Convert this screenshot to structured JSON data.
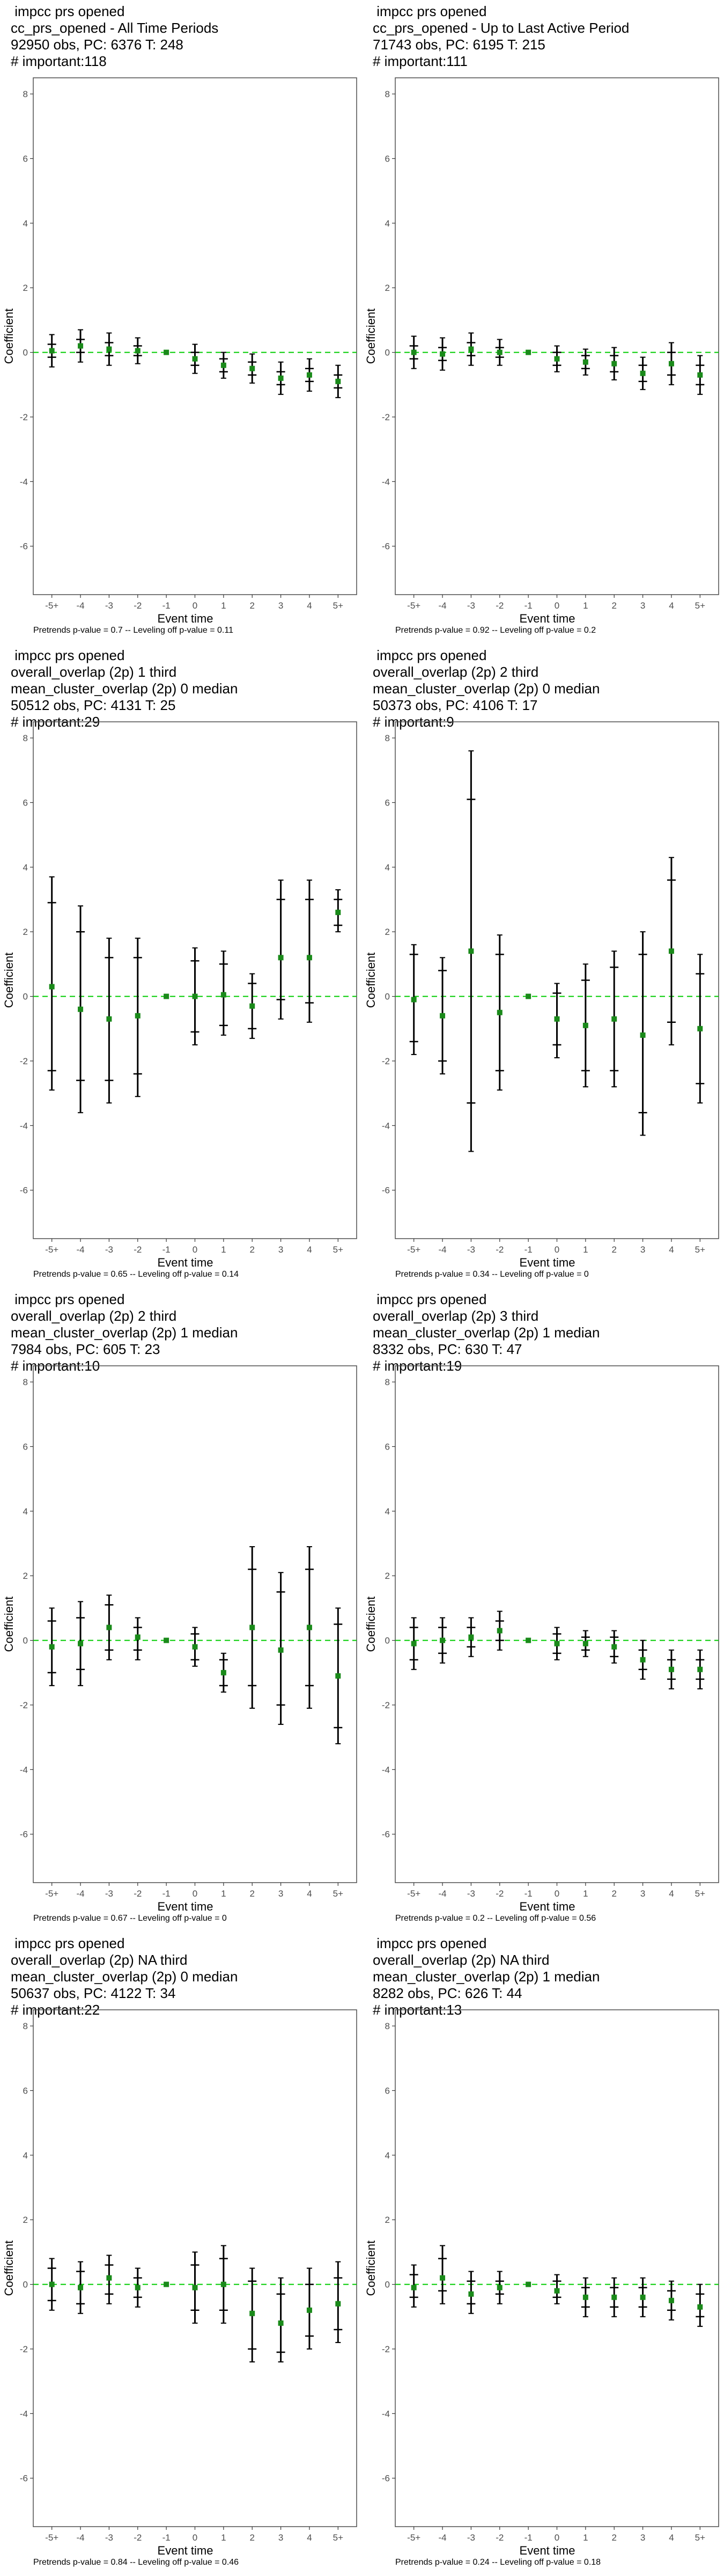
{
  "panels": [
    {
      "header": [
        " impcc prs opened",
        "cc_prs_opened - All Time Periods",
        "92950 obs, PC: 6376 T: 248",
        "# important:118"
      ],
      "footer": "Pretrends p-value = 0.7 -- Leveling off p-value = 0.11"
    },
    {
      "header": [
        " impcc prs opened",
        "cc_prs_opened - Up to Last Active Period",
        "71743 obs, PC: 6195 T: 215",
        "# important:111"
      ],
      "footer": "Pretrends p-value = 0.92 -- Leveling off p-value = 0.2"
    },
    {
      "header": [
        " impcc prs opened",
        "overall_overlap (2p) 1 third",
        "mean_cluster_overlap (2p) 0 median",
        "50512 obs, PC: 4131 T: 25",
        "# important:29"
      ],
      "footer": "Pretrends p-value = 0.65 -- Leveling off p-value = 0.14"
    },
    {
      "header": [
        " impcc prs opened",
        "overall_overlap (2p) 2 third",
        "mean_cluster_overlap (2p) 0 median",
        "50373 obs, PC: 4106 T: 17",
        "# important:9"
      ],
      "footer": "Pretrends p-value = 0.34 -- Leveling off p-value = 0"
    },
    {
      "header": [
        " impcc prs opened",
        "overall_overlap (2p) 2 third",
        "mean_cluster_overlap (2p) 1 median",
        "7984 obs, PC: 605 T: 23",
        "# important:10"
      ],
      "footer": "Pretrends p-value = 0.67 -- Leveling off p-value = 0"
    },
    {
      "header": [
        " impcc prs opened",
        "overall_overlap (2p) 3 third",
        "mean_cluster_overlap (2p) 1 median",
        "8332 obs, PC: 630 T: 47",
        "# important:19"
      ],
      "footer": "Pretrends p-value = 0.2 -- Leveling off p-value = 0.56"
    },
    {
      "header": [
        " impcc prs opened",
        "overall_overlap (2p) NA third",
        "mean_cluster_overlap (2p) 0 median",
        "50637 obs, PC: 4122 T: 34",
        "# important:22"
      ],
      "footer": "Pretrends p-value = 0.84 -- Leveling off p-value = 0.46"
    },
    {
      "header": [
        " impcc prs opened",
        "overall_overlap (2p) NA third",
        "mean_cluster_overlap (2p) 1 median",
        "8282 obs, PC: 626 T: 44",
        "# important:13"
      ],
      "footer": "Pretrends p-value = 0.24 -- Leveling off p-value = 0.18"
    }
  ],
  "colors": {
    "point": "#1a8a1a",
    "zero_line": "#00cc00",
    "bar": "#000000",
    "frame": "#4d4d4d"
  },
  "chart_data": [
    {
      "type": "scatter",
      "categories": [
        "-5+",
        "-4",
        "-3",
        "-2",
        "-1",
        "0",
        "1",
        "2",
        "3",
        "4",
        "5+"
      ],
      "values": [
        0.05,
        0.2,
        0.1,
        0.05,
        0,
        -0.2,
        -0.4,
        -0.5,
        -0.8,
        -0.7,
        -0.9
      ],
      "ci_outer": [
        [
          -0.45,
          0.55
        ],
        [
          -0.3,
          0.7
        ],
        [
          -0.4,
          0.6
        ],
        [
          -0.35,
          0.45
        ],
        [
          0,
          0
        ],
        [
          -0.65,
          0.25
        ],
        [
          -0.8,
          0
        ],
        [
          -0.95,
          -0.05
        ],
        [
          -1.3,
          -0.3
        ],
        [
          -1.2,
          -0.2
        ],
        [
          -1.4,
          -0.4
        ]
      ],
      "ci_inner": [
        [
          -0.15,
          0.25
        ],
        [
          0,
          0.4
        ],
        [
          -0.1,
          0.3
        ],
        [
          -0.1,
          0.2
        ],
        [
          0,
          0
        ],
        [
          -0.4,
          0
        ],
        [
          -0.6,
          -0.2
        ],
        [
          -0.7,
          -0.3
        ],
        [
          -1.0,
          -0.6
        ],
        [
          -0.9,
          -0.5
        ],
        [
          -1.1,
          -0.7
        ]
      ],
      "ylim": [
        -7.5,
        8.5
      ],
      "yticks": [
        -6,
        -4,
        -2,
        0,
        2,
        4,
        6,
        8
      ],
      "xlabel": "Event time",
      "ylabel": "Coefficient"
    },
    {
      "type": "scatter",
      "categories": [
        "-5+",
        "-4",
        "-3",
        "-2",
        "-1",
        "0",
        "1",
        "2",
        "3",
        "4",
        "5+"
      ],
      "values": [
        0,
        -0.05,
        0.1,
        0,
        0,
        -0.2,
        -0.3,
        -0.35,
        -0.65,
        -0.35,
        -0.7
      ],
      "ci_outer": [
        [
          -0.5,
          0.5
        ],
        [
          -0.55,
          0.45
        ],
        [
          -0.4,
          0.6
        ],
        [
          -0.4,
          0.4
        ],
        [
          0,
          0
        ],
        [
          -0.6,
          0.2
        ],
        [
          -0.7,
          0.1
        ],
        [
          -0.85,
          0.15
        ],
        [
          -1.15,
          -0.15
        ],
        [
          -1.0,
          0.3
        ],
        [
          -1.3,
          -0.1
        ]
      ],
      "ci_inner": [
        [
          -0.2,
          0.2
        ],
        [
          -0.25,
          0.15
        ],
        [
          -0.1,
          0.3
        ],
        [
          -0.15,
          0.15
        ],
        [
          0,
          0
        ],
        [
          -0.4,
          0
        ],
        [
          -0.5,
          -0.1
        ],
        [
          -0.6,
          -0.1
        ],
        [
          -0.9,
          -0.4
        ],
        [
          -0.7,
          0
        ],
        [
          -1.0,
          -0.4
        ]
      ],
      "ylim": [
        -7.5,
        8.5
      ],
      "yticks": [
        -6,
        -4,
        -2,
        0,
        2,
        4,
        6,
        8
      ],
      "xlabel": "Event time",
      "ylabel": "Coefficient"
    },
    {
      "type": "scatter",
      "categories": [
        "-5+",
        "-4",
        "-3",
        "-2",
        "-1",
        "0",
        "1",
        "2",
        "3",
        "4",
        "5+"
      ],
      "values": [
        0.3,
        -0.4,
        -0.7,
        -0.6,
        0,
        0,
        0.05,
        -0.3,
        1.2,
        1.2,
        2.6
      ],
      "ci_outer": [
        [
          -2.9,
          3.7
        ],
        [
          -3.6,
          2.8
        ],
        [
          -3.3,
          1.8
        ],
        [
          -3.1,
          1.8
        ],
        [
          0,
          0
        ],
        [
          -1.5,
          1.5
        ],
        [
          -1.2,
          1.4
        ],
        [
          -1.3,
          0.7
        ],
        [
          -0.7,
          3.6
        ],
        [
          -0.8,
          3.6
        ],
        [
          2.0,
          3.3
        ]
      ],
      "ci_inner": [
        [
          -2.3,
          2.9
        ],
        [
          -2.6,
          2.0
        ],
        [
          -2.6,
          1.2
        ],
        [
          -2.4,
          1.2
        ],
        [
          0,
          0
        ],
        [
          -1.1,
          1.1
        ],
        [
          -0.9,
          1.0
        ],
        [
          -1.0,
          0.4
        ],
        [
          -0.1,
          3.0
        ],
        [
          -0.2,
          3.0
        ],
        [
          2.2,
          3.0
        ]
      ],
      "ylim": [
        -7.5,
        8.5
      ],
      "yticks": [
        -6,
        -4,
        -2,
        0,
        2,
        4,
        6,
        8
      ],
      "xlabel": "Event time",
      "ylabel": "Coefficient"
    },
    {
      "type": "scatter",
      "categories": [
        "-5+",
        "-4",
        "-3",
        "-2",
        "-1",
        "0",
        "1",
        "2",
        "3",
        "4",
        "5+"
      ],
      "values": [
        -0.1,
        -0.6,
        1.4,
        -0.5,
        0,
        -0.7,
        -0.9,
        -0.7,
        -1.2,
        1.4,
        -1.0
      ],
      "ci_outer": [
        [
          -1.8,
          1.6
        ],
        [
          -2.4,
          1.2
        ],
        [
          -4.8,
          7.6
        ],
        [
          -2.9,
          1.9
        ],
        [
          0,
          0
        ],
        [
          -1.9,
          0.4
        ],
        [
          -2.8,
          1.0
        ],
        [
          -2.8,
          1.4
        ],
        [
          -4.3,
          2.0
        ],
        [
          -1.5,
          4.3
        ],
        [
          -3.3,
          1.3
        ]
      ],
      "ci_inner": [
        [
          -1.4,
          1.3
        ],
        [
          -2.0,
          0.8
        ],
        [
          -3.3,
          6.1
        ],
        [
          -2.3,
          1.3
        ],
        [
          0,
          0
        ],
        [
          -1.5,
          0.1
        ],
        [
          -2.3,
          0.5
        ],
        [
          -2.3,
          0.9
        ],
        [
          -3.6,
          1.3
        ],
        [
          -0.8,
          3.6
        ],
        [
          -2.7,
          0.7
        ]
      ],
      "ylim": [
        -7.5,
        8.5
      ],
      "yticks": [
        -6,
        -4,
        -2,
        0,
        2,
        4,
        6,
        8
      ],
      "xlabel": "Event time",
      "ylabel": "Coefficient"
    },
    {
      "type": "scatter",
      "categories": [
        "-5+",
        "-4",
        "-3",
        "-2",
        "-1",
        "0",
        "1",
        "2",
        "3",
        "4",
        "5+"
      ],
      "values": [
        -0.2,
        -0.1,
        0.4,
        0.1,
        0,
        -0.2,
        -1.0,
        0.4,
        -0.3,
        0.4,
        -1.1
      ],
      "ci_outer": [
        [
          -1.4,
          1.0
        ],
        [
          -1.4,
          1.2
        ],
        [
          -0.6,
          1.4
        ],
        [
          -0.6,
          0.7
        ],
        [
          0,
          0
        ],
        [
          -0.8,
          0.4
        ],
        [
          -1.6,
          -0.4
        ],
        [
          -2.1,
          2.9
        ],
        [
          -2.6,
          2.1
        ],
        [
          -2.1,
          2.9
        ],
        [
          -3.2,
          1.0
        ]
      ],
      "ci_inner": [
        [
          -1.0,
          0.6
        ],
        [
          -0.9,
          0.7
        ],
        [
          -0.3,
          1.1
        ],
        [
          -0.3,
          0.4
        ],
        [
          0,
          0
        ],
        [
          -0.6,
          0.2
        ],
        [
          -1.4,
          -0.6
        ],
        [
          -1.4,
          2.2
        ],
        [
          -2.0,
          1.5
        ],
        [
          -1.4,
          2.2
        ],
        [
          -2.7,
          0.5
        ]
      ],
      "ylim": [
        -7.5,
        8.5
      ],
      "yticks": [
        -6,
        -4,
        -2,
        0,
        2,
        4,
        6,
        8
      ],
      "xlabel": "Event time",
      "ylabel": "Coefficient"
    },
    {
      "type": "scatter",
      "categories": [
        "-5+",
        "-4",
        "-3",
        "-2",
        "-1",
        "0",
        "1",
        "2",
        "3",
        "4",
        "5+"
      ],
      "values": [
        -0.1,
        0,
        0.1,
        0.3,
        0,
        -0.1,
        -0.1,
        -0.2,
        -0.6,
        -0.9,
        -0.9
      ],
      "ci_outer": [
        [
          -0.9,
          0.7
        ],
        [
          -0.7,
          0.7
        ],
        [
          -0.5,
          0.7
        ],
        [
          -0.3,
          0.9
        ],
        [
          0,
          0
        ],
        [
          -0.6,
          0.4
        ],
        [
          -0.5,
          0.3
        ],
        [
          -0.7,
          0.3
        ],
        [
          -1.2,
          0
        ],
        [
          -1.5,
          -0.3
        ],
        [
          -1.5,
          -0.3
        ]
      ],
      "ci_inner": [
        [
          -0.6,
          0.4
        ],
        [
          -0.4,
          0.4
        ],
        [
          -0.2,
          0.4
        ],
        [
          0,
          0.6
        ],
        [
          0,
          0
        ],
        [
          -0.4,
          0.2
        ],
        [
          -0.3,
          0.1
        ],
        [
          -0.5,
          0.1
        ],
        [
          -0.9,
          -0.3
        ],
        [
          -1.2,
          -0.6
        ],
        [
          -1.2,
          -0.6
        ]
      ],
      "ylim": [
        -7.5,
        8.5
      ],
      "yticks": [
        -6,
        -4,
        -2,
        0,
        2,
        4,
        6,
        8
      ],
      "xlabel": "Event time",
      "ylabel": "Coefficient"
    },
    {
      "type": "scatter",
      "categories": [
        "-5+",
        "-4",
        "-3",
        "-2",
        "-1",
        "0",
        "1",
        "2",
        "3",
        "4",
        "5+"
      ],
      "values": [
        0,
        -0.1,
        0.2,
        -0.1,
        0,
        -0.1,
        0,
        -0.9,
        -1.2,
        -0.8,
        -0.6
      ],
      "ci_outer": [
        [
          -0.8,
          0.8
        ],
        [
          -0.9,
          0.7
        ],
        [
          -0.6,
          0.9
        ],
        [
          -0.7,
          0.5
        ],
        [
          0,
          0
        ],
        [
          -1.2,
          1.0
        ],
        [
          -1.2,
          1.2
        ],
        [
          -2.4,
          0.5
        ],
        [
          -2.4,
          0.2
        ],
        [
          -2.0,
          0.5
        ],
        [
          -1.8,
          0.7
        ]
      ],
      "ci_inner": [
        [
          -0.5,
          0.5
        ],
        [
          -0.6,
          0.4
        ],
        [
          -0.3,
          0.6
        ],
        [
          -0.4,
          0.2
        ],
        [
          0,
          0
        ],
        [
          -0.8,
          0.6
        ],
        [
          -0.8,
          0.8
        ],
        [
          -2.0,
          0.1
        ],
        [
          -2.1,
          -0.3
        ],
        [
          -1.6,
          0
        ],
        [
          -1.4,
          0.2
        ]
      ],
      "ylim": [
        -7.5,
        8.5
      ],
      "yticks": [
        -6,
        -4,
        -2,
        0,
        2,
        4,
        6,
        8
      ],
      "xlabel": "Event time",
      "ylabel": "Coefficient"
    },
    {
      "type": "scatter",
      "categories": [
        "-5+",
        "-4",
        "-3",
        "-2",
        "-1",
        "0",
        "1",
        "2",
        "3",
        "4",
        "5+"
      ],
      "values": [
        -0.1,
        0.2,
        -0.3,
        -0.1,
        0,
        -0.2,
        -0.4,
        -0.4,
        -0.4,
        -0.5,
        -0.7
      ],
      "ci_outer": [
        [
          -0.7,
          0.6
        ],
        [
          -0.6,
          1.2
        ],
        [
          -0.9,
          0.4
        ],
        [
          -0.6,
          0.4
        ],
        [
          0,
          0
        ],
        [
          -0.6,
          0.3
        ],
        [
          -1.0,
          0.2
        ],
        [
          -1.0,
          0.2
        ],
        [
          -1.0,
          0.2
        ],
        [
          -1.1,
          0.1
        ],
        [
          -1.3,
          0
        ]
      ],
      "ci_inner": [
        [
          -0.4,
          0.3
        ],
        [
          -0.2,
          0.8
        ],
        [
          -0.6,
          0.1
        ],
        [
          -0.3,
          0.1
        ],
        [
          0,
          0
        ],
        [
          -0.4,
          0.1
        ],
        [
          -0.7,
          -0.1
        ],
        [
          -0.7,
          -0.1
        ],
        [
          -0.7,
          -0.1
        ],
        [
          -0.8,
          -0.2
        ],
        [
          -1.0,
          -0.3
        ]
      ],
      "ylim": [
        -7.5,
        8.5
      ],
      "yticks": [
        -6,
        -4,
        -2,
        0,
        2,
        4,
        6,
        8
      ],
      "xlabel": "Event time",
      "ylabel": "Coefficient"
    }
  ]
}
